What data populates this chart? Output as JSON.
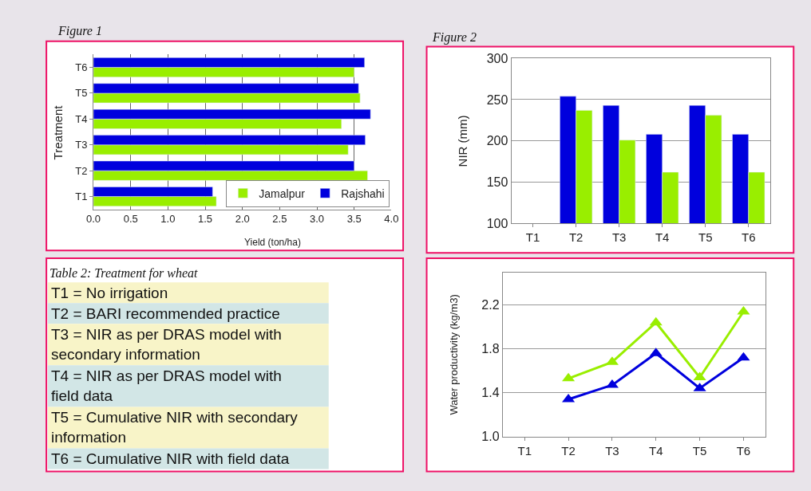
{
  "chart_data": [
    {
      "type": "bar",
      "orientation": "horizontal",
      "title": "Figure 1",
      "xlabel": "Yield (ton/ha)",
      "ylabel": "Treatment",
      "categories": [
        "T6",
        "T5",
        "T4",
        "T3",
        "T2",
        "T1"
      ],
      "series": [
        {
          "name": "Jamalpur",
          "color": "#99ee00",
          "values": [
            3.5,
            3.58,
            3.33,
            3.42,
            3.68,
            1.65
          ]
        },
        {
          "name": "Rajshahi",
          "color": "#0000dd",
          "values": [
            3.64,
            3.56,
            3.72,
            3.65,
            3.5,
            1.6
          ]
        }
      ],
      "xlim": [
        0,
        4
      ],
      "xticks": [
        {
          "value": 0,
          "label": "0.0"
        },
        0.5,
        {
          "value": 1,
          "label": "1.0"
        },
        1.5,
        {
          "value": 2,
          "label": "2.0"
        },
        2.5,
        {
          "value": 3,
          "label": "3.0"
        },
        3.5,
        {
          "value": 4,
          "label": "4.0"
        }
      ],
      "grid": "x",
      "legend": "bottom right"
    },
    {
      "type": "bar",
      "title": "Figure 2",
      "ylabel": "NIR (mm)",
      "categories": [
        "T1",
        "T2",
        "T3",
        "T4",
        "T5",
        "T6"
      ],
      "series": [
        {
          "color": "#0000dd",
          "values": [
            null,
            254,
            243,
            208,
            243,
            208
          ]
        },
        {
          "color": "#99ee00",
          "values": [
            null,
            237,
            201,
            162,
            231,
            162
          ]
        }
      ],
      "ylim": [
        100,
        300
      ],
      "yticks": [
        100,
        150,
        200,
        250,
        300
      ],
      "grid": "y"
    },
    {
      "type": "other",
      "title": "Table 2: Treatment for wheat",
      "annotations": [
        "T1 = No irrigation",
        "T2 = BARI recommended practice",
        "T3 = NIR as per DRAS model with\nsecondary information",
        "T4 = NIR as per DRAS model with\nfield data",
        "T5 = Cumulative NIR with secondary\ninformation",
        "T6 = Cumulative NIR with field data"
      ]
    },
    {
      "type": "line",
      "ylabel": "Water productivity (kg/m3)",
      "categories": [
        "T1",
        "T2",
        "T3",
        "T4",
        "T5",
        "T6"
      ],
      "series": [
        {
          "color": "#99ee00",
          "values": [
            null,
            1.53,
            1.68,
            2.04,
            1.54,
            2.14
          ]
        },
        {
          "color": "#0000dd",
          "values": [
            null,
            1.34,
            1.47,
            1.76,
            1.44,
            1.72
          ]
        }
      ],
      "ylim": [
        1.0,
        2.5
      ],
      "yticks": [
        {
          "value": 1.0,
          "label": "1.0"
        },
        1.4,
        1.8,
        2.2
      ],
      "grid": "y",
      "marker": "triangle"
    }
  ]
}
